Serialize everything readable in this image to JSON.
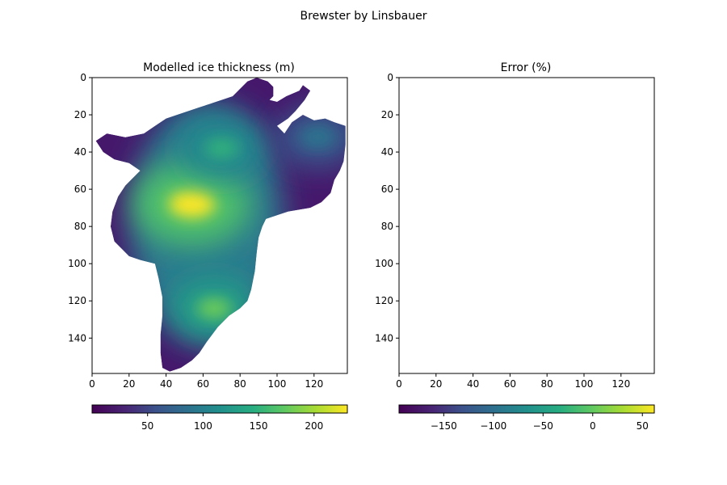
{
  "figure": {
    "title": "Brewster by Linsbauer"
  },
  "chart_data": [
    {
      "type": "heatmap",
      "title": "Modelled ice thickness (m)",
      "xlabel": "",
      "ylabel": "",
      "xlim": [
        0,
        138
      ],
      "ylim": [
        159,
        0
      ],
      "x_ticks": [
        0,
        20,
        40,
        60,
        80,
        100,
        120
      ],
      "y_ticks": [
        0,
        20,
        40,
        60,
        80,
        100,
        120,
        140
      ],
      "grid": false,
      "colormap": "viridis",
      "colorbar": {
        "orientation": "horizontal",
        "placement": "bottom",
        "min": 0,
        "max": 230,
        "ticks": [
          50,
          100,
          150,
          200
        ]
      },
      "outline_polygon": [
        [
          89,
          0
        ],
        [
          95,
          2
        ],
        [
          98,
          5
        ],
        [
          98,
          10
        ],
        [
          96,
          12
        ],
        [
          100,
          13
        ],
        [
          105,
          10
        ],
        [
          112,
          7
        ],
        [
          114,
          4
        ],
        [
          118,
          7
        ],
        [
          115,
          12
        ],
        [
          110,
          18
        ],
        [
          106,
          22
        ],
        [
          100,
          26
        ],
        [
          104,
          30
        ],
        [
          108,
          24
        ],
        [
          114,
          20
        ],
        [
          120,
          23
        ],
        [
          126,
          22
        ],
        [
          131,
          24
        ],
        [
          137,
          26
        ],
        [
          137,
          36
        ],
        [
          136,
          45
        ],
        [
          134,
          50
        ],
        [
          131,
          55
        ],
        [
          129,
          62
        ],
        [
          124,
          67
        ],
        [
          118,
          70
        ],
        [
          106,
          72
        ],
        [
          100,
          74
        ],
        [
          94,
          76
        ],
        [
          92,
          80
        ],
        [
          90,
          86
        ],
        [
          89,
          94
        ],
        [
          88,
          104
        ],
        [
          86,
          114
        ],
        [
          84,
          120
        ],
        [
          80,
          124
        ],
        [
          74,
          128
        ],
        [
          68,
          134
        ],
        [
          62,
          142
        ],
        [
          58,
          148
        ],
        [
          54,
          152
        ],
        [
          48,
          156
        ],
        [
          42,
          158
        ],
        [
          38,
          156
        ],
        [
          37,
          148
        ],
        [
          37,
          138
        ],
        [
          38,
          128
        ],
        [
          38,
          118
        ],
        [
          36,
          108
        ],
        [
          34,
          100
        ],
        [
          26,
          98
        ],
        [
          20,
          96
        ],
        [
          16,
          92
        ],
        [
          12,
          88
        ],
        [
          10,
          80
        ],
        [
          11,
          72
        ],
        [
          14,
          64
        ],
        [
          18,
          58
        ],
        [
          22,
          54
        ],
        [
          26,
          50
        ],
        [
          20,
          46
        ],
        [
          12,
          44
        ],
        [
          6,
          40
        ],
        [
          2,
          34
        ],
        [
          8,
          30
        ],
        [
          18,
          32
        ],
        [
          28,
          30
        ],
        [
          34,
          26
        ],
        [
          40,
          22
        ],
        [
          46,
          20
        ],
        [
          52,
          18
        ],
        [
          58,
          16
        ],
        [
          64,
          14
        ],
        [
          70,
          12
        ],
        [
          76,
          10
        ],
        [
          80,
          6
        ],
        [
          84,
          2
        ]
      ],
      "thickness_peaks": [
        {
          "x": 54,
          "y": 68,
          "value": 230
        },
        {
          "x": 66,
          "y": 124,
          "value": 180
        },
        {
          "x": 70,
          "y": 38,
          "value": 150
        },
        {
          "x": 122,
          "y": 32,
          "value": 90
        }
      ]
    },
    {
      "type": "heatmap",
      "title": "Error (%)",
      "xlabel": "",
      "ylabel": "",
      "xlim": [
        0,
        138
      ],
      "ylim": [
        159,
        0
      ],
      "x_ticks": [
        0,
        20,
        40,
        60,
        80,
        100,
        120
      ],
      "y_ticks": [
        0,
        20,
        40,
        60,
        80,
        100,
        120,
        140
      ],
      "grid": false,
      "colormap": "viridis",
      "colorbar": {
        "orientation": "horizontal",
        "placement": "bottom",
        "min": -195,
        "max": 62,
        "ticks": [
          -150,
          -100,
          -50,
          0,
          50
        ]
      },
      "values": []
    }
  ]
}
